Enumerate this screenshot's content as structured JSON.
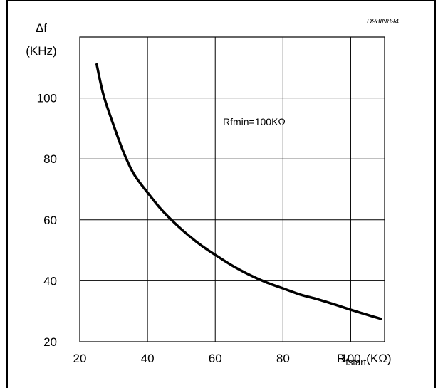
{
  "chart_data": {
    "type": "line",
    "figure_code": "D98IN894",
    "y_axis_symbol": "Δf",
    "y_axis_unit": "(KHz)",
    "x_axis_label_main": "R",
    "x_axis_label_sub": "fstart",
    "x_axis_label_unit": "(KΩ)",
    "annotation": "Rfmin=100KΩ",
    "xlim": [
      20,
      110
    ],
    "ylim": [
      20,
      120
    ],
    "x_ticks": [
      "20",
      "40",
      "60",
      "80",
      "100"
    ],
    "y_ticks": [
      "20",
      "40",
      "60",
      "80",
      "100"
    ],
    "grid": true,
    "series": [
      {
        "x": [
          25,
          27,
          30,
          33,
          36,
          40,
          44,
          48,
          52,
          56,
          60,
          65,
          70,
          75,
          80,
          85,
          90,
          95,
          100,
          105,
          109
        ],
        "y": [
          111,
          101,
          91,
          82,
          75,
          69,
          63.5,
          59,
          55,
          51.5,
          48.5,
          45,
          42,
          39.5,
          37.5,
          35.5,
          34,
          32.3,
          30.5,
          28.8,
          27.5
        ]
      }
    ]
  }
}
